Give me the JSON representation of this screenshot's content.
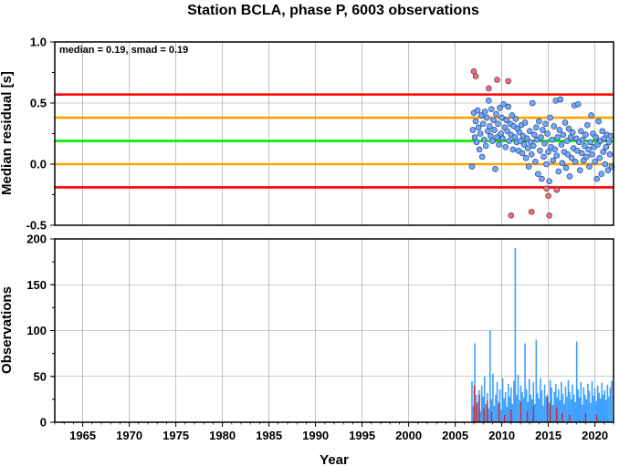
{
  "title": "Station BCLA, phase P, 6003 observations",
  "chart_data": [
    {
      "type": "scatter",
      "ylabel": "Median residual [s]",
      "xlim": [
        1962,
        2022
      ],
      "ylim": [
        -0.5,
        1.0
      ],
      "yticks": [
        "1.0",
        "0.5",
        "0.0",
        "-0.5"
      ],
      "annotation": "median = 0.19, smad = 0.19",
      "grid": true,
      "reference_lines": [
        {
          "y": 0.57,
          "color": "#ff0000"
        },
        {
          "y": 0.38,
          "color": "#ffa500"
        },
        {
          "y": 0.19,
          "color": "#00ee00"
        },
        {
          "y": 0.0,
          "color": "#ffa500"
        },
        {
          "y": -0.19,
          "color": "#ff0000"
        }
      ],
      "inlier_color": "#6fa8ff",
      "outlier_color": "#ff6a6a",
      "points": [
        [
          2006.8,
          -0.02,
          0
        ],
        [
          2006.9,
          0.28,
          0
        ],
        [
          2007.0,
          0.42,
          0
        ],
        [
          2007.1,
          0.22,
          0
        ],
        [
          2007.2,
          0.35,
          0
        ],
        [
          2007.3,
          0.18,
          0
        ],
        [
          2007.4,
          0.44,
          0
        ],
        [
          2007.5,
          0.3,
          0
        ],
        [
          2007.6,
          0.12,
          0
        ],
        [
          2007.7,
          0.25,
          0
        ],
        [
          2007.8,
          0.4,
          0
        ],
        [
          2007.9,
          0.06,
          0
        ],
        [
          2008.0,
          0.33,
          0
        ],
        [
          2008.1,
          0.2,
          0
        ],
        [
          2008.2,
          0.43,
          0
        ],
        [
          2008.3,
          0.15,
          0
        ],
        [
          2008.4,
          0.38,
          0
        ],
        [
          2008.5,
          0.27,
          0
        ],
        [
          2008.6,
          0.52,
          0
        ],
        [
          2008.7,
          0.31,
          0
        ],
        [
          2008.8,
          0.23,
          0
        ],
        [
          2008.9,
          0.45,
          0
        ],
        [
          2009.0,
          0.19,
          0
        ],
        [
          2009.1,
          0.36,
          0
        ],
        [
          2009.2,
          0.28,
          0
        ],
        [
          2009.3,
          -0.04,
          0
        ],
        [
          2009.4,
          0.41,
          0
        ],
        [
          2009.5,
          0.22,
          0
        ],
        [
          2009.6,
          0.33,
          0
        ],
        [
          2009.7,
          0.16,
          0
        ],
        [
          2009.8,
          0.46,
          0
        ],
        [
          2009.9,
          0.25,
          0
        ],
        [
          2010.0,
          0.38,
          0
        ],
        [
          2010.1,
          0.21,
          0
        ],
        [
          2010.2,
          0.49,
          0
        ],
        [
          2010.3,
          0.3,
          0
        ],
        [
          2010.4,
          0.14,
          0
        ],
        [
          2010.5,
          0.36,
          0
        ],
        [
          2010.6,
          0.27,
          0
        ],
        [
          2010.7,
          0.47,
          0
        ],
        [
          2010.8,
          0.19,
          0
        ],
        [
          2010.9,
          0.33,
          0
        ],
        [
          2011.0,
          0.24,
          0
        ],
        [
          2011.1,
          0.4,
          0
        ],
        [
          2011.2,
          0.12,
          0
        ],
        [
          2011.3,
          0.31,
          0
        ],
        [
          2011.4,
          0.22,
          0
        ],
        [
          2011.5,
          0.37,
          0
        ],
        [
          2011.6,
          0.18,
          0
        ],
        [
          2011.7,
          0.29,
          0
        ],
        [
          2011.8,
          0.11,
          0
        ],
        [
          2011.9,
          0.26,
          0
        ],
        [
          2012.0,
          0.19,
          0
        ],
        [
          2012.1,
          0.32,
          0
        ],
        [
          2012.2,
          0.09,
          0
        ],
        [
          2012.3,
          0.23,
          0
        ],
        [
          2012.4,
          0.16,
          0
        ],
        [
          2012.5,
          0.34,
          0
        ],
        [
          2012.6,
          0.05,
          0
        ],
        [
          2012.7,
          0.21,
          0
        ],
        [
          2012.8,
          0.13,
          0
        ],
        [
          2012.9,
          -0.02,
          0
        ],
        [
          2013.0,
          0.27,
          0
        ],
        [
          2013.1,
          0.18,
          0
        ],
        [
          2013.2,
          0.08,
          0
        ],
        [
          2013.3,
          0.5,
          0
        ],
        [
          2013.4,
          0.15,
          0
        ],
        [
          2013.5,
          0.24,
          0
        ],
        [
          2013.6,
          0.02,
          0
        ],
        [
          2013.7,
          0.3,
          0
        ],
        [
          2013.8,
          0.2,
          0
        ],
        [
          2013.9,
          -0.08,
          0
        ],
        [
          2014.0,
          0.35,
          0
        ],
        [
          2014.1,
          0.11,
          0
        ],
        [
          2014.2,
          0.22,
          0
        ],
        [
          2014.3,
          -0.12,
          0
        ],
        [
          2014.4,
          0.28,
          0
        ],
        [
          2014.5,
          0.06,
          0
        ],
        [
          2014.6,
          0.17,
          0
        ],
        [
          2014.7,
          0.33,
          0
        ],
        [
          2014.8,
          0.0,
          0
        ],
        [
          2014.9,
          0.25,
          0
        ],
        [
          2015.0,
          0.1,
          0
        ],
        [
          2015.1,
          -0.14,
          0
        ],
        [
          2015.2,
          0.38,
          0
        ],
        [
          2015.3,
          0.14,
          0
        ],
        [
          2015.4,
          0.2,
          0
        ],
        [
          2015.5,
          0.03,
          0
        ],
        [
          2015.6,
          0.31,
          0
        ],
        [
          2015.7,
          0.12,
          0
        ],
        [
          2015.8,
          0.52,
          0
        ],
        [
          2015.9,
          0.07,
          0
        ],
        [
          2016.0,
          0.22,
          0
        ],
        [
          2016.1,
          -0.06,
          0
        ],
        [
          2016.2,
          0.28,
          0
        ],
        [
          2016.3,
          0.53,
          0
        ],
        [
          2016.4,
          0.16,
          0
        ],
        [
          2016.5,
          0.01,
          0
        ],
        [
          2016.6,
          0.24,
          0
        ],
        [
          2016.7,
          0.1,
          0
        ],
        [
          2016.8,
          0.34,
          0
        ],
        [
          2016.9,
          -0.03,
          0
        ],
        [
          2017.0,
          0.19,
          0
        ],
        [
          2017.1,
          0.08,
          0
        ],
        [
          2017.2,
          0.29,
          0
        ],
        [
          2017.3,
          -0.1,
          0
        ],
        [
          2017.4,
          0.22,
          0
        ],
        [
          2017.5,
          0.05,
          0
        ],
        [
          2017.6,
          0.26,
          0
        ],
        [
          2017.7,
          0.13,
          0
        ],
        [
          2017.8,
          0.48,
          0
        ],
        [
          2017.9,
          0.02,
          0
        ],
        [
          2018.0,
          0.21,
          0
        ],
        [
          2018.1,
          0.11,
          0
        ],
        [
          2018.2,
          0.49,
          0
        ],
        [
          2018.3,
          0.18,
          0
        ],
        [
          2018.4,
          -0.05,
          0
        ],
        [
          2018.5,
          0.27,
          0
        ],
        [
          2018.6,
          0.09,
          0
        ],
        [
          2018.7,
          0.2,
          0
        ],
        [
          2018.8,
          0.03,
          0
        ],
        [
          2018.9,
          0.15,
          0
        ],
        [
          2019.0,
          0.24,
          0
        ],
        [
          2019.1,
          0.06,
          0
        ],
        [
          2019.2,
          0.32,
          0
        ],
        [
          2019.3,
          0.12,
          0
        ],
        [
          2019.4,
          -0.02,
          0
        ],
        [
          2019.5,
          0.18,
          0
        ],
        [
          2019.6,
          0.4,
          0
        ],
        [
          2019.7,
          0.08,
          0
        ],
        [
          2019.8,
          0.25,
          0
        ],
        [
          2019.9,
          0.14,
          0
        ],
        [
          2020.0,
          0.02,
          0
        ],
        [
          2020.1,
          0.22,
          0
        ],
        [
          2020.2,
          -0.12,
          0
        ],
        [
          2020.3,
          0.16,
          0
        ],
        [
          2020.4,
          0.35,
          0
        ],
        [
          2020.5,
          0.05,
          0
        ],
        [
          2020.6,
          0.19,
          0
        ],
        [
          2020.7,
          -0.08,
          0
        ],
        [
          2020.8,
          0.27,
          0
        ],
        [
          2020.9,
          0.1,
          0
        ],
        [
          2021.0,
          0.21,
          0
        ],
        [
          2021.1,
          0.0,
          0
        ],
        [
          2021.2,
          0.14,
          0
        ],
        [
          2021.3,
          0.24,
          0
        ],
        [
          2021.4,
          -0.05,
          0
        ],
        [
          2021.5,
          0.18,
          0
        ],
        [
          2021.6,
          0.08,
          0
        ],
        [
          2021.7,
          0.23,
          0
        ],
        [
          2021.8,
          -0.02,
          0
        ],
        [
          2007.0,
          0.76,
          1
        ],
        [
          2007.2,
          0.72,
          1
        ],
        [
          2008.6,
          0.62,
          1
        ],
        [
          2009.5,
          0.69,
          1
        ],
        [
          2010.7,
          0.68,
          1
        ],
        [
          2011.0,
          -0.42,
          1
        ],
        [
          2013.2,
          -0.39,
          1
        ],
        [
          2014.8,
          -0.2,
          1
        ],
        [
          2015.0,
          -0.26,
          1
        ],
        [
          2015.1,
          -0.42,
          1
        ],
        [
          2015.9,
          -0.21,
          1
        ]
      ]
    },
    {
      "type": "bar",
      "xlabel": "Year",
      "ylabel": "Observations",
      "xlim": [
        1962,
        2022
      ],
      "ylim": [
        0,
        200
      ],
      "xticks": [
        "1965",
        "1970",
        "1975",
        "1980",
        "1985",
        "1990",
        "1995",
        "2000",
        "2005",
        "2010",
        "2015",
        "2020"
      ],
      "yticks": [
        "200",
        "150",
        "100",
        "50",
        "0"
      ],
      "grid": true,
      "bar_color": "#3da0ff",
      "outlier_bar_color": "#dd2222",
      "bars": [
        [
          2006.8,
          45
        ],
        [
          2006.95,
          18
        ],
        [
          2007.1,
          86
        ],
        [
          2007.25,
          30
        ],
        [
          2007.4,
          22
        ],
        [
          2007.55,
          35
        ],
        [
          2007.7,
          12
        ],
        [
          2007.85,
          40
        ],
        [
          2008.0,
          28
        ],
        [
          2008.15,
          50
        ],
        [
          2008.3,
          20
        ],
        [
          2008.45,
          32
        ],
        [
          2008.6,
          15
        ],
        [
          2008.75,
          100
        ],
        [
          2008.9,
          25
        ],
        [
          2009.05,
          53
        ],
        [
          2009.2,
          18
        ],
        [
          2009.35,
          30
        ],
        [
          2009.5,
          44
        ],
        [
          2009.65,
          22
        ],
        [
          2009.8,
          36
        ],
        [
          2009.95,
          14
        ],
        [
          2010.1,
          48
        ],
        [
          2010.25,
          26
        ],
        [
          2010.4,
          33
        ],
        [
          2010.55,
          17
        ],
        [
          2010.7,
          42
        ],
        [
          2010.85,
          28
        ],
        [
          2011.0,
          38
        ],
        [
          2011.15,
          20
        ],
        [
          2011.3,
          45
        ],
        [
          2011.45,
          190
        ],
        [
          2011.6,
          30
        ],
        [
          2011.75,
          52
        ],
        [
          2011.9,
          24
        ],
        [
          2012.05,
          40
        ],
        [
          2012.2,
          33
        ],
        [
          2012.35,
          27
        ],
        [
          2012.5,
          86
        ],
        [
          2012.65,
          36
        ],
        [
          2012.8,
          22
        ],
        [
          2012.95,
          47
        ],
        [
          2013.1,
          30
        ],
        [
          2013.25,
          25
        ],
        [
          2013.4,
          44
        ],
        [
          2013.55,
          20
        ],
        [
          2013.7,
          90
        ],
        [
          2013.85,
          32
        ],
        [
          2014.0,
          26
        ],
        [
          2014.15,
          48
        ],
        [
          2014.3,
          35
        ],
        [
          2014.45,
          18
        ],
        [
          2014.6,
          41
        ],
        [
          2014.75,
          28
        ],
        [
          2014.9,
          30
        ],
        [
          2015.05,
          22
        ],
        [
          2015.2,
          46
        ],
        [
          2015.35,
          38
        ],
        [
          2015.5,
          19
        ],
        [
          2015.65,
          33
        ],
        [
          2015.8,
          42
        ],
        [
          2015.95,
          27
        ],
        [
          2016.1,
          36
        ],
        [
          2016.25,
          24
        ],
        [
          2016.4,
          44
        ],
        [
          2016.55,
          31
        ],
        [
          2016.7,
          20
        ],
        [
          2016.85,
          39
        ],
        [
          2017.0,
          28
        ],
        [
          2017.15,
          46
        ],
        [
          2017.3,
          33
        ],
        [
          2017.45,
          25
        ],
        [
          2017.6,
          41
        ],
        [
          2017.75,
          30
        ],
        [
          2017.9,
          22
        ],
        [
          2018.05,
          88
        ],
        [
          2018.2,
          36
        ],
        [
          2018.35,
          27
        ],
        [
          2018.5,
          44
        ],
        [
          2018.65,
          19
        ],
        [
          2018.8,
          38
        ],
        [
          2018.95,
          30
        ],
        [
          2019.1,
          25
        ],
        [
          2019.25,
          42
        ],
        [
          2019.4,
          34
        ],
        [
          2019.55,
          21
        ],
        [
          2019.7,
          45
        ],
        [
          2019.85,
          29
        ],
        [
          2020.0,
          37
        ],
        [
          2020.15,
          23
        ],
        [
          2020.3,
          40
        ],
        [
          2020.45,
          32
        ],
        [
          2020.6,
          26
        ],
        [
          2020.75,
          43
        ],
        [
          2020.9,
          30
        ],
        [
          2021.05,
          35
        ],
        [
          2021.2,
          24
        ],
        [
          2021.35,
          41
        ],
        [
          2021.5,
          28
        ],
        [
          2021.65,
          38
        ],
        [
          2021.8,
          45
        ]
      ],
      "outlier_bars": [
        [
          2007.05,
          40
        ],
        [
          2007.3,
          20
        ],
        [
          2007.6,
          30
        ],
        [
          2008.1,
          15
        ],
        [
          2008.45,
          24
        ],
        [
          2008.9,
          12
        ],
        [
          2009.7,
          20
        ],
        [
          2010.3,
          8
        ],
        [
          2011.0,
          14
        ],
        [
          2012.05,
          22
        ],
        [
          2012.75,
          12
        ],
        [
          2013.4,
          18
        ],
        [
          2014.9,
          28
        ],
        [
          2015.2,
          20
        ],
        [
          2015.9,
          16
        ],
        [
          2016.5,
          10
        ],
        [
          2017.3,
          8
        ],
        [
          2019.0,
          10
        ],
        [
          2020.2,
          8
        ]
      ]
    }
  ]
}
